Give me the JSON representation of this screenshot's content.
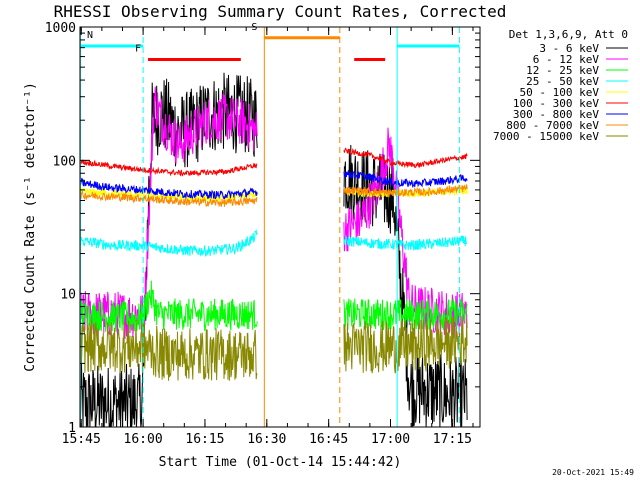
{
  "chart_data": {
    "type": "line",
    "title": "RHESSI Observing Summary Count Rates, Corrected",
    "xlabel": "Start Time (01-Oct-14 15:44:42)",
    "ylabel": "Corrected Count Rate (s⁻¹ detector⁻¹)",
    "x_unit": "minutes after 15:44:42",
    "xlim": [
      0,
      97
    ],
    "ylim": [
      1,
      1000
    ],
    "yscale": "log",
    "x_ticks": [
      {
        "label": "15:45",
        "value": 0.3
      },
      {
        "label": "16:00",
        "value": 15.3
      },
      {
        "label": "16:15",
        "value": 30.3
      },
      {
        "label": "16:30",
        "value": 45.3
      },
      {
        "label": "16:45",
        "value": 60.3
      },
      {
        "label": "17:00",
        "value": 75.3
      },
      {
        "label": "17:15",
        "value": 90.3
      }
    ],
    "y_ticks": [
      {
        "label": "1",
        "value": 1
      },
      {
        "label": "10",
        "value": 10
      },
      {
        "label": "100",
        "value": 100
      },
      {
        "label": "1000",
        "value": 1000
      }
    ],
    "legend": {
      "title": "Det 1,3,6,9, Att 0",
      "placement": "right"
    },
    "series": [
      {
        "name": "3 - 6 keV",
        "color": "#000000",
        "points": [
          [
            0,
            1.5
          ],
          [
            15,
            1.5
          ],
          [
            15.5,
            3
          ],
          [
            16.5,
            45
          ],
          [
            17.5,
            200
          ],
          [
            20,
            230
          ],
          [
            24,
            160
          ],
          [
            28,
            180
          ],
          [
            31,
            220
          ],
          [
            35,
            230
          ],
          [
            40,
            220
          ],
          [
            43,
            200
          ]
        ],
        "points2": [
          [
            64,
            80
          ],
          [
            68,
            65
          ],
          [
            72,
            60
          ],
          [
            76,
            55
          ],
          [
            80,
            2
          ],
          [
            90,
            1.7
          ],
          [
            94,
            1.7
          ]
        ],
        "noise": 0.3
      },
      {
        "name": "6 - 12 keV",
        "color": "#ff00ff",
        "points": [
          [
            0,
            7
          ],
          [
            15,
            7
          ],
          [
            15.5,
            6
          ],
          [
            16.5,
            30
          ],
          [
            18,
            280
          ],
          [
            20,
            200
          ],
          [
            22,
            160
          ],
          [
            24,
            130
          ],
          [
            28,
            170
          ],
          [
            31,
            200
          ],
          [
            35,
            210
          ],
          [
            40,
            190
          ],
          [
            43,
            160
          ]
        ],
        "points2": [
          [
            64,
            30
          ],
          [
            68,
            35
          ],
          [
            72,
            60
          ],
          [
            75,
            130
          ],
          [
            76,
            90
          ],
          [
            80,
            8
          ],
          [
            90,
            7
          ],
          [
            94,
            7
          ]
        ],
        "noise": 0.18
      },
      {
        "name": "12 - 25 keV",
        "color": "#00ff00",
        "points": [
          [
            0,
            7
          ],
          [
            15,
            6.5
          ],
          [
            17,
            10
          ],
          [
            19,
            7
          ],
          [
            43,
            7
          ]
        ],
        "points2": [
          [
            64,
            7
          ],
          [
            94,
            7
          ]
        ],
        "noise": 0.12
      },
      {
        "name": "25 - 50 keV",
        "color": "#00ffff",
        "points": [
          [
            0,
            25
          ],
          [
            8,
            23
          ],
          [
            15,
            23
          ],
          [
            20,
            22
          ],
          [
            26,
            21
          ],
          [
            32,
            21
          ],
          [
            38,
            22
          ],
          [
            42,
            26
          ],
          [
            43,
            28
          ]
        ],
        "points2": [
          [
            64,
            25
          ],
          [
            70,
            24
          ],
          [
            80,
            23
          ],
          [
            88,
            24
          ],
          [
            94,
            25
          ]
        ],
        "noise": 0.04
      },
      {
        "name": "50 - 100 keV",
        "color": "#ffff00",
        "points": [
          [
            0,
            58
          ],
          [
            15,
            55
          ],
          [
            25,
            53
          ],
          [
            35,
            52
          ],
          [
            43,
            56
          ]
        ],
        "points2": [
          [
            64,
            58
          ],
          [
            75,
            56
          ],
          [
            85,
            57
          ],
          [
            94,
            60
          ]
        ],
        "noise": 0.03
      },
      {
        "name": "100 - 300 keV",
        "color": "#ff0000",
        "points": [
          [
            0,
            98
          ],
          [
            8,
            90
          ],
          [
            15,
            85
          ],
          [
            25,
            80
          ],
          [
            35,
            82
          ],
          [
            43,
            92
          ]
        ],
        "points2": [
          [
            64,
            118
          ],
          [
            70,
            110
          ],
          [
            76,
            95
          ],
          [
            82,
            92
          ],
          [
            88,
            100
          ],
          [
            94,
            107
          ]
        ],
        "noise": 0.02
      },
      {
        "name": "300 - 800 keV",
        "color": "#0000ff",
        "points": [
          [
            0,
            68
          ],
          [
            8,
            62
          ],
          [
            15,
            60
          ],
          [
            25,
            56
          ],
          [
            35,
            55
          ],
          [
            43,
            58
          ]
        ],
        "points2": [
          [
            64,
            80
          ],
          [
            70,
            75
          ],
          [
            76,
            68
          ],
          [
            82,
            67
          ],
          [
            88,
            70
          ],
          [
            94,
            74
          ]
        ],
        "noise": 0.03
      },
      {
        "name": "800 - 7000 keV",
        "color": "#ff8800",
        "points": [
          [
            0,
            55
          ],
          [
            15,
            52
          ],
          [
            25,
            49
          ],
          [
            35,
            48
          ],
          [
            43,
            50
          ]
        ],
        "points2": [
          [
            64,
            60
          ],
          [
            75,
            57
          ],
          [
            85,
            58
          ],
          [
            94,
            62
          ]
        ],
        "noise": 0.03
      },
      {
        "name": "7000 - 15000 keV",
        "color": "#888800",
        "points": [
          [
            0,
            4
          ],
          [
            15,
            4
          ],
          [
            20,
            3.5
          ],
          [
            43,
            3.5
          ]
        ],
        "points2": [
          [
            64,
            4
          ],
          [
            80,
            4
          ],
          [
            94,
            4.5
          ]
        ],
        "noise": 0.2
      }
    ],
    "annotations": {
      "flags": [
        {
          "label": "N",
          "color": "#00ffff",
          "x_start": 0,
          "x_end": 15.3,
          "level": 720
        },
        {
          "label": "",
          "color": "#00ffff",
          "x_start": 77,
          "x_end": 92,
          "level": 720
        },
        {
          "label": "F",
          "color": "#ff0000",
          "x_start": 16.5,
          "x_end": 39,
          "level": 570
        },
        {
          "label": "",
          "color": "#ff0000",
          "x_start": 66.5,
          "x_end": 74,
          "level": 570
        },
        {
          "label": "S",
          "color": "#ff8800",
          "x_start": 44.7,
          "x_end": 63,
          "level": 830
        }
      ],
      "vlines": [
        {
          "x": 0.1,
          "color": "#00ffff",
          "style": "solid"
        },
        {
          "x": 15.3,
          "color": "#00ffff",
          "style": "dashed"
        },
        {
          "x": 44.7,
          "color": "#ff8800",
          "style": "solid"
        },
        {
          "x": 63.0,
          "color": "#ff8800",
          "style": "dashed"
        },
        {
          "x": 76.9,
          "color": "#00ffff",
          "style": "solid"
        },
        {
          "x": 92.0,
          "color": "#00ffff",
          "style": "dashed"
        }
      ]
    }
  },
  "footer": {
    "timestamp": "20-Oct-2021 15:49"
  }
}
